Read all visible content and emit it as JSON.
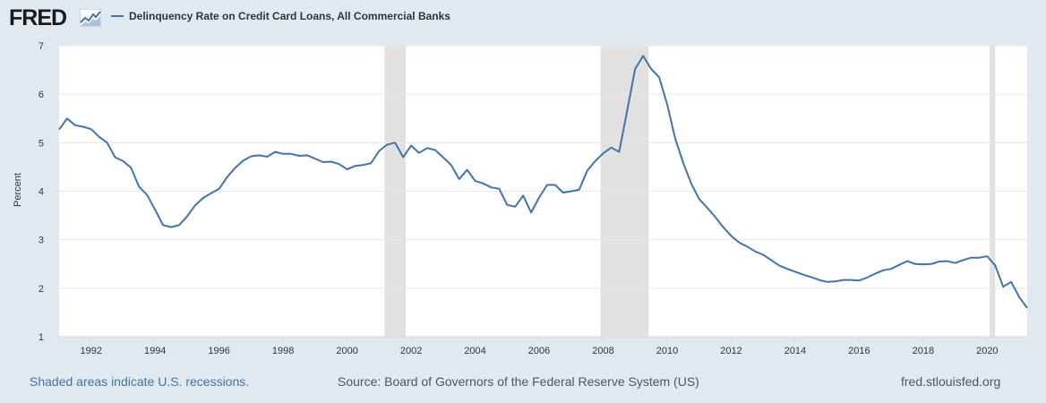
{
  "header": {
    "logo_text": "FRED",
    "logo_icon": "line-chart-icon",
    "legend_label": "Delinquency Rate on Credit Card Loans, All Commercial Banks"
  },
  "footer": {
    "recession_note": "Shaded areas indicate U.S. recessions.",
    "source": "Source: Board of Governors of the Federal Reserve System (US)",
    "site": "fred.stlouisfed.org"
  },
  "colors": {
    "series": "#4572a7",
    "recession": "#e1e1e1",
    "plot_bg": "#ffffff",
    "page_bg": "#e1e9f0",
    "grid": "#e6e6e6"
  },
  "chart_data": {
    "type": "line",
    "title": "",
    "xlabel": "",
    "ylabel": "Percent",
    "xlim": [
      1991.0,
      2021.25
    ],
    "ylim": [
      1,
      7
    ],
    "yticks": [
      1,
      2,
      3,
      4,
      5,
      6,
      7
    ],
    "xticks": [
      1992,
      1994,
      1996,
      1998,
      2000,
      2002,
      2004,
      2006,
      2008,
      2010,
      2012,
      2014,
      2016,
      2018,
      2020
    ],
    "grid": "horizontal",
    "legend_position": "top",
    "recessions": [
      [
        2001.17,
        2001.83
      ],
      [
        2007.92,
        2009.42
      ],
      [
        2020.08,
        2020.25
      ]
    ],
    "series": [
      {
        "name": "Delinquency Rate on Credit Card Loans, All Commercial Banks",
        "x": [
          1991.0,
          1991.25,
          1991.5,
          1991.75,
          1992.0,
          1992.25,
          1992.5,
          1992.75,
          1993.0,
          1993.25,
          1993.5,
          1993.75,
          1994.0,
          1994.25,
          1994.5,
          1994.75,
          1995.0,
          1995.25,
          1995.5,
          1995.75,
          1996.0,
          1996.25,
          1996.5,
          1996.75,
          1997.0,
          1997.25,
          1997.5,
          1997.75,
          1998.0,
          1998.25,
          1998.5,
          1998.75,
          1999.0,
          1999.25,
          1999.5,
          1999.75,
          2000.0,
          2000.25,
          2000.5,
          2000.75,
          2001.0,
          2001.25,
          2001.5,
          2001.75,
          2002.0,
          2002.25,
          2002.5,
          2002.75,
          2003.0,
          2003.25,
          2003.5,
          2003.75,
          2004.0,
          2004.25,
          2004.5,
          2004.75,
          2005.0,
          2005.25,
          2005.5,
          2005.75,
          2006.0,
          2006.25,
          2006.5,
          2006.75,
          2007.0,
          2007.25,
          2007.5,
          2007.75,
          2008.0,
          2008.25,
          2008.5,
          2008.75,
          2009.0,
          2009.25,
          2009.5,
          2009.75,
          2010.0,
          2010.25,
          2010.5,
          2010.75,
          2011.0,
          2011.25,
          2011.5,
          2011.75,
          2012.0,
          2012.25,
          2012.5,
          2012.75,
          2013.0,
          2013.25,
          2013.5,
          2013.75,
          2014.0,
          2014.25,
          2014.5,
          2014.75,
          2015.0,
          2015.25,
          2015.5,
          2015.75,
          2016.0,
          2016.25,
          2016.5,
          2016.75,
          2017.0,
          2017.25,
          2017.5,
          2017.75,
          2018.0,
          2018.25,
          2018.5,
          2018.75,
          2019.0,
          2019.25,
          2019.5,
          2019.75,
          2020.0,
          2020.25,
          2020.5,
          2020.75,
          2021.0,
          2021.25
        ],
        "values": [
          5.27,
          5.5,
          5.36,
          5.33,
          5.28,
          5.12,
          5.0,
          4.7,
          4.62,
          4.48,
          4.09,
          3.92,
          3.62,
          3.3,
          3.26,
          3.3,
          3.48,
          3.71,
          3.86,
          3.96,
          4.05,
          4.29,
          4.48,
          4.63,
          4.72,
          4.74,
          4.71,
          4.81,
          4.77,
          4.77,
          4.73,
          4.74,
          4.67,
          4.6,
          4.61,
          4.56,
          4.45,
          4.52,
          4.54,
          4.58,
          4.83,
          4.96,
          5.0,
          4.7,
          4.94,
          4.79,
          4.89,
          4.85,
          4.7,
          4.54,
          4.25,
          4.44,
          4.21,
          4.16,
          4.08,
          4.05,
          3.72,
          3.68,
          3.91,
          3.56,
          3.87,
          4.13,
          4.13,
          3.97,
          4.0,
          4.03,
          4.42,
          4.62,
          4.78,
          4.9,
          4.81,
          5.66,
          6.52,
          6.79,
          6.52,
          6.35,
          5.79,
          5.09,
          4.59,
          4.16,
          3.84,
          3.66,
          3.47,
          3.26,
          3.08,
          2.94,
          2.86,
          2.76,
          2.69,
          2.58,
          2.47,
          2.4,
          2.34,
          2.28,
          2.23,
          2.17,
          2.13,
          2.14,
          2.17,
          2.17,
          2.16,
          2.22,
          2.3,
          2.37,
          2.4,
          2.48,
          2.56,
          2.5,
          2.49,
          2.5,
          2.55,
          2.56,
          2.52,
          2.58,
          2.63,
          2.63,
          2.66,
          2.47,
          2.03,
          2.13,
          1.82,
          1.59
        ]
      }
    ]
  }
}
